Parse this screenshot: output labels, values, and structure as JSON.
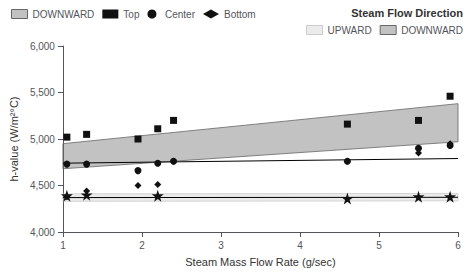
{
  "chart_data": {
    "type": "scatter",
    "xlabel": "Steam Mass Flow Rate (g/sec)",
    "ylabel": "h-value (W/m²°C)",
    "xlim": [
      1,
      6
    ],
    "ylim": [
      4000,
      6000
    ],
    "xticks": [
      1,
      2,
      3,
      4,
      5,
      6
    ],
    "yticks": [
      4000,
      4500,
      5000,
      5500,
      6000
    ],
    "grid": false,
    "legends": [
      {
        "legend": "upper left",
        "entries": [
          "DOWNWARD",
          "Top",
          "Center",
          "Bottom"
        ]
      },
      {
        "legend": "upper right",
        "title": "Steam Flow Direction",
        "entries": [
          "UPWARD",
          "DOWNWARD"
        ]
      }
    ],
    "series": [
      {
        "name": "DOWNWARD",
        "type": "band",
        "color": "#666666",
        "x": [
          1.0,
          6.0
        ],
        "upper": [
          4950,
          5380
        ],
        "lower": [
          4680,
          4970
        ]
      },
      {
        "name": "UPWARD",
        "type": "band",
        "color": "#cccccc",
        "x": [
          1.0,
          6.0
        ],
        "upper": [
          4410,
          4415
        ],
        "lower": [
          4330,
          4335
        ]
      },
      {
        "name": "DOWNWARD",
        "type": "line",
        "color": "#000000",
        "x": [
          1.0,
          6.0
        ],
        "values": [
          4740,
          4790
        ]
      },
      {
        "name": "UPWARD",
        "type": "line",
        "color": "#000000",
        "x": [
          1.0,
          6.0
        ],
        "values": [
          4370,
          4373
        ]
      },
      {
        "name": "Top",
        "type": "scatter",
        "marker": "square",
        "color": "#111111",
        "x": [
          1.05,
          1.3,
          1.95,
          2.2,
          2.4,
          4.6,
          5.5,
          5.9
        ],
        "values": [
          5020,
          5050,
          5000,
          5110,
          5200,
          5160,
          5200,
          5460
        ]
      },
      {
        "name": "Center",
        "type": "scatter",
        "marker": "circle",
        "color": "#111111",
        "x": [
          1.05,
          1.3,
          1.95,
          2.2,
          2.4,
          4.6,
          5.5,
          5.9
        ],
        "values": [
          4730,
          4730,
          4660,
          4740,
          4760,
          4760,
          4900,
          4930
        ]
      },
      {
        "name": "Bottom",
        "type": "scatter",
        "marker": "diamond",
        "color": "#111111",
        "x": [
          1.05,
          1.3,
          1.95,
          2.2,
          2.4,
          4.6,
          5.5,
          5.9
        ],
        "values": [
          4380,
          4440,
          4500,
          4510,
          4760,
          4760,
          4850,
          4950
        ]
      },
      {
        "name": "UPWARD",
        "type": "scatter",
        "marker": "star",
        "color": "#111111",
        "x": [
          1.05,
          1.3,
          2.2,
          4.6,
          5.5,
          5.9
        ],
        "values": [
          4390,
          4400,
          4390,
          4360,
          4380,
          4380
        ]
      }
    ]
  }
}
